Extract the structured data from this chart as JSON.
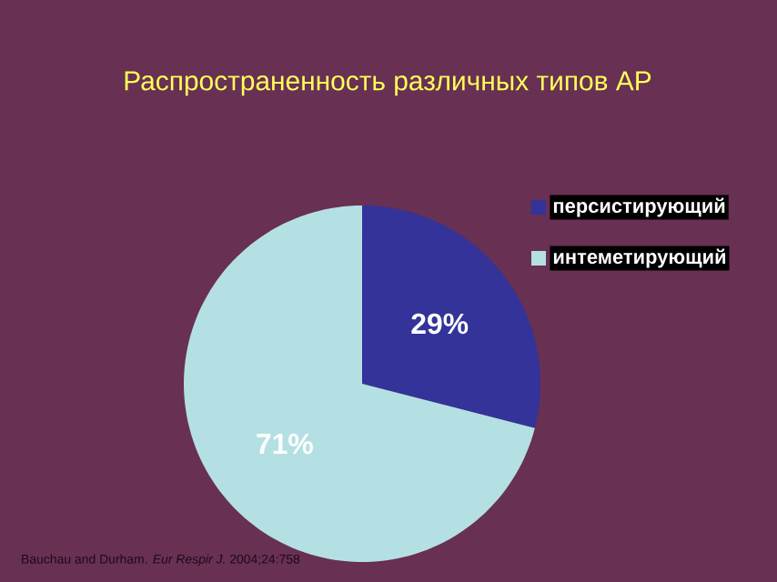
{
  "chart_data": {
    "type": "pie",
    "title": "Распространенность различных типов АР",
    "categories": [
      "персистирующий",
      "интеметирующий"
    ],
    "values": [
      29,
      71
    ],
    "colors": [
      "#333399",
      "#b4e0e4"
    ],
    "value_labels": [
      "29%",
      "71%"
    ],
    "legend": "right",
    "annotations": [
      "Bauchau and Durham. *Eur Respir J.* 2004;24:758"
    ]
  }
}
